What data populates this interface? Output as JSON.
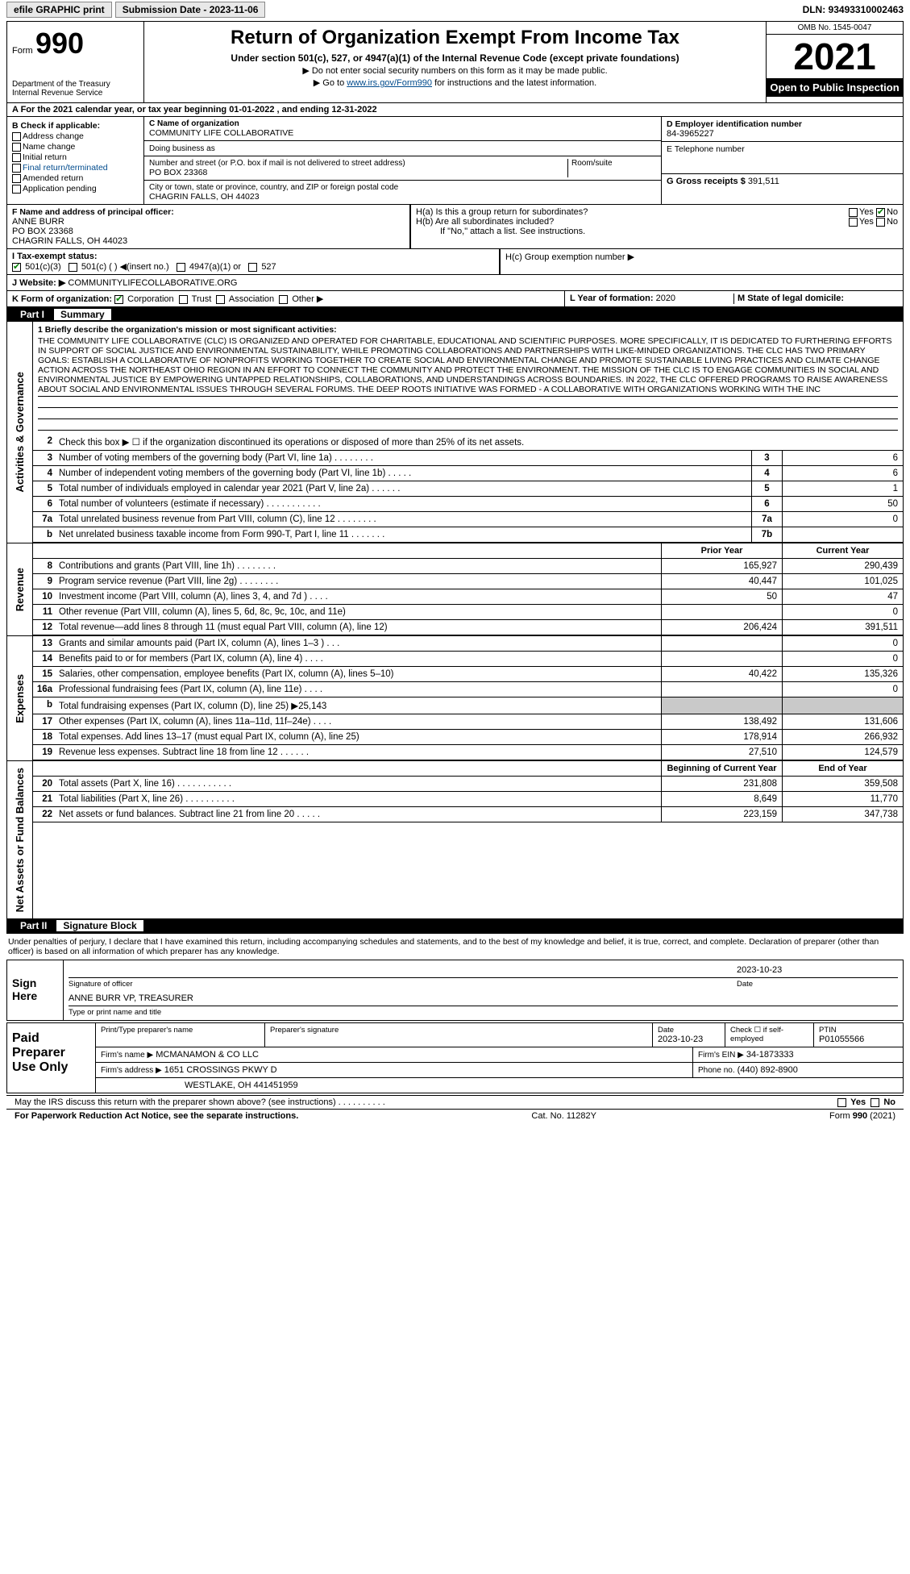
{
  "topbar": {
    "efile": "efile GRAPHIC print",
    "submission_label": "Submission Date - 2023-11-06",
    "dln_label": "DLN: 93493310002463"
  },
  "header": {
    "form_prefix": "Form",
    "form_no": "990",
    "dept": "Department of the Treasury\nInternal Revenue Service",
    "title": "Return of Organization Exempt From Income Tax",
    "sub1": "Under section 501(c), 527, or 4947(a)(1) of the Internal Revenue Code (except private foundations)",
    "sub2": "▶ Do not enter social security numbers on this form as it may be made public.",
    "sub3_pre": "▶ Go to ",
    "sub3_link": "www.irs.gov/Form990",
    "sub3_post": " for instructions and the latest information.",
    "omb": "OMB No. 1545-0047",
    "year": "2021",
    "open": "Open to Public Inspection"
  },
  "sectionA": "A For the 2021 calendar year, or tax year beginning 01-01-2022   , and ending 12-31-2022",
  "blockB": {
    "title": "B Check if applicable:",
    "items": [
      "Address change",
      "Name change",
      "Initial return",
      "Final return/terminated",
      "Amended return",
      "Application pending"
    ]
  },
  "blockC": {
    "label": "C Name of organization",
    "name": "COMMUNITY LIFE COLLABORATIVE",
    "dba_label": "Doing business as",
    "addr_label": "Number and street (or P.O. box if mail is not delivered to street address)",
    "room_label": "Room/suite",
    "addr": "PO BOX 23368",
    "city_label": "City or town, state or province, country, and ZIP or foreign postal code",
    "city": "CHAGRIN FALLS, OH  44023"
  },
  "blockD": {
    "label": "D Employer identification number",
    "value": "84-3965227"
  },
  "blockE": {
    "label": "E Telephone number",
    "value": ""
  },
  "blockG": {
    "label": "G Gross receipts $",
    "value": "391,511"
  },
  "blockF": {
    "label": "F Name and address of principal officer:",
    "name": "ANNE BURR",
    "addr1": "PO BOX 23368",
    "addr2": "CHAGRIN FALLS, OH  44023"
  },
  "blockH": {
    "ha": "H(a)  Is this a group return for subordinates?",
    "hb": "H(b)  Are all subordinates included?",
    "hb2": "If \"No,\" attach a list. See instructions.",
    "hc": "H(c)  Group exemption number ▶",
    "yes": "Yes",
    "no": "No"
  },
  "blockI": {
    "label": "I   Tax-exempt status:",
    "opts": [
      "501(c)(3)",
      "501(c) (  ) ◀(insert no.)",
      "4947(a)(1) or",
      "527"
    ]
  },
  "blockJ": {
    "label": "J  Website: ▶",
    "value": "COMMUNITYLIFECOLLABORATIVE.ORG"
  },
  "blockK": {
    "label": "K Form of organization:",
    "opts": [
      "Corporation",
      "Trust",
      "Association",
      "Other ▶"
    ]
  },
  "blockL": {
    "label": "L Year of formation:",
    "value": "2020"
  },
  "blockM": {
    "label": "M State of legal domicile:",
    "value": ""
  },
  "part1": {
    "part": "Part I",
    "title": "Summary"
  },
  "mission": {
    "label": "1  Briefly describe the organization's mission or most significant activities:",
    "text": "THE COMMUNITY LIFE COLLABORATIVE (CLC) IS ORGANIZED AND OPERATED FOR CHARITABLE, EDUCATIONAL AND SCIENTIFIC PURPOSES. MORE SPECIFICALLY, IT IS DEDICATED TO FURTHERING EFFORTS IN SUPPORT OF SOCIAL JUSTICE AND ENVIRONMENTAL SUSTAINABILITY, WHILE PROMOTING COLLABORATIONS AND PARTNERSHIPS WITH LIKE-MINDED ORGANIZATIONS. THE CLC HAS TWO PRIMARY GOALS: ESTABLISH A COLLABORATIVE OF NONPROFITS WORKING TOGETHER TO CREATE SOCIAL AND ENVIRONMENTAL CHANGE AND PROMOTE SUSTAINABLE LIVING PRACTICES AND CLIMATE CHANGE ACTION ACROSS THE NORTHEAST OHIO REGION IN AN EFFORT TO CONNECT THE COMMUNITY AND PROTECT THE ENVIRONMENT. THE MISSION OF THE CLC IS TO ENGAGE COMMUNITIES IN SOCIAL AND ENVIRONMENTAL JUSTICE BY EMPOWERING UNTAPPED RELATIONSHIPS, COLLABORATIONS, AND UNDERSTANDINGS ACROSS BOUNDARIES. IN 2022, THE CLC OFFERED PROGRAMS TO RAISE AWARENESS ABOUT SOCIAL AND ENVIRONMENTAL ISSUES THROUGH SEVERAL FORUMS. THE DEEP ROOTS INITIATIVE WAS FORMED - A COLLABORATIVE WITH ORGANIZATIONS WORKING WITH THE INC"
  },
  "lines_gov": [
    {
      "n": "2",
      "d": "Check this box ▶ ☐ if the organization discontinued its operations or disposed of more than 25% of its net assets.",
      "box": "",
      "v": ""
    },
    {
      "n": "3",
      "d": "Number of voting members of the governing body (Part VI, line 1a)  .    .    .    .    .    .    .    .",
      "box": "3",
      "v": "6"
    },
    {
      "n": "4",
      "d": "Number of independent voting members of the governing body (Part VI, line 1b)    .    .    .    .    .",
      "box": "4",
      "v": "6"
    },
    {
      "n": "5",
      "d": "Total number of individuals employed in calendar year 2021 (Part V, line 2a)  .    .    .    .    .    .",
      "box": "5",
      "v": "1"
    },
    {
      "n": "6",
      "d": "Total number of volunteers (estimate if necessary)  .    .    .    .    .    .    .    .    .    .    .",
      "box": "6",
      "v": "50"
    },
    {
      "n": "7a",
      "d": "Total unrelated business revenue from Part VIII, column (C), line 12  .    .    .    .    .    .    .    .",
      "box": "7a",
      "v": "0"
    },
    {
      "n": "b",
      "d": "Net unrelated business taxable income from Form 990-T, Part I, line 11   .    .    .    .    .    .    .",
      "box": "7b",
      "v": ""
    }
  ],
  "col_headers": {
    "prior": "Prior Year",
    "current": "Current Year",
    "begin": "Beginning of Current Year",
    "end": "End of Year"
  },
  "lines_rev": [
    {
      "n": "8",
      "d": "Contributions and grants (Part VIII, line 1h)  .    .    .    .    .    .    .    .",
      "p": "165,927",
      "c": "290,439"
    },
    {
      "n": "9",
      "d": "Program service revenue (Part VIII, line 2g)  .    .    .    .    .    .    .    .",
      "p": "40,447",
      "c": "101,025"
    },
    {
      "n": "10",
      "d": "Investment income (Part VIII, column (A), lines 3, 4, and 7d )    .    .    .    .",
      "p": "50",
      "c": "47"
    },
    {
      "n": "11",
      "d": "Other revenue (Part VIII, column (A), lines 5, 6d, 8c, 9c, 10c, and 11e)",
      "p": "",
      "c": "0"
    },
    {
      "n": "12",
      "d": "Total revenue—add lines 8 through 11 (must equal Part VIII, column (A), line 12)",
      "p": "206,424",
      "c": "391,511"
    }
  ],
  "lines_exp": [
    {
      "n": "13",
      "d": "Grants and similar amounts paid (Part IX, column (A), lines 1–3 )  .    .    .",
      "p": "",
      "c": "0"
    },
    {
      "n": "14",
      "d": "Benefits paid to or for members (Part IX, column (A), line 4)    .    .    .    .",
      "p": "",
      "c": "0"
    },
    {
      "n": "15",
      "d": "Salaries, other compensation, employee benefits (Part IX, column (A), lines 5–10)",
      "p": "40,422",
      "c": "135,326"
    },
    {
      "n": "16a",
      "d": "Professional fundraising fees (Part IX, column (A), line 11e)    .    .    .    .",
      "p": "",
      "c": "0"
    },
    {
      "n": "b",
      "d": "Total fundraising expenses (Part IX, column (D), line 25) ▶25,143",
      "p": "SHADE",
      "c": "SHADE"
    },
    {
      "n": "17",
      "d": "Other expenses (Part IX, column (A), lines 11a–11d, 11f–24e)   .    .    .    .",
      "p": "138,492",
      "c": "131,606"
    },
    {
      "n": "18",
      "d": "Total expenses. Add lines 13–17 (must equal Part IX, column (A), line 25)",
      "p": "178,914",
      "c": "266,932"
    },
    {
      "n": "19",
      "d": "Revenue less expenses. Subtract line 18 from line 12   .    .    .    .    .    .",
      "p": "27,510",
      "c": "124,579"
    }
  ],
  "lines_net": [
    {
      "n": "20",
      "d": "Total assets (Part X, line 16)  .    .    .    .    .    .    .    .    .    .    .",
      "p": "231,808",
      "c": "359,508"
    },
    {
      "n": "21",
      "d": "Total liabilities (Part X, line 26)  .    .    .    .    .    .    .    .    .    .",
      "p": "8,649",
      "c": "11,770"
    },
    {
      "n": "22",
      "d": "Net assets or fund balances. Subtract line 21 from line 20   .    .    .    .    .",
      "p": "223,159",
      "c": "347,738"
    }
  ],
  "sidebars": {
    "gov": "Activities & Governance",
    "rev": "Revenue",
    "exp": "Expenses",
    "net": "Net Assets or Fund Balances"
  },
  "part2": {
    "part": "Part II",
    "title": "Signature Block"
  },
  "penalties": "Under penalties of perjury, I declare that I have examined this return, including accompanying schedules and statements, and to the best of my knowledge and belief, it is true, correct, and complete. Declaration of preparer (other than officer) is based on all information of which preparer has any knowledge.",
  "sign": {
    "here": "Sign Here",
    "sig_label": "Signature of officer",
    "date": "2023-10-23",
    "date_label": "Date",
    "name": "ANNE BURR  VP, TREASURER",
    "name_label": "Type or print name and title"
  },
  "paid": {
    "title": "Paid Preparer Use Only",
    "print_label": "Print/Type preparer's name",
    "sig_label": "Preparer's signature",
    "date_label": "Date",
    "date": "2023-10-23",
    "check_label": "Check ☐ if self-employed",
    "ptin_label": "PTIN",
    "ptin": "P01055566",
    "firm_label": "Firm's name    ▶",
    "firm": "MCMANAMON & CO LLC",
    "ein_label": "Firm's EIN ▶",
    "ein": "34-1873333",
    "addr_label": "Firm's address ▶",
    "addr1": "1651 CROSSINGS PKWY D",
    "addr2": "WESTLAKE, OH  441451959",
    "phone_label": "Phone no.",
    "phone": "(440) 892-8900"
  },
  "discuss": "May the IRS discuss this return with the preparer shown above? (see instructions)   .    .    .    .    .    .    .    .    .    .",
  "footer": {
    "left": "For Paperwork Reduction Act Notice, see the separate instructions.",
    "mid": "Cat. No. 11282Y",
    "right": "Form 990 (2021)"
  }
}
